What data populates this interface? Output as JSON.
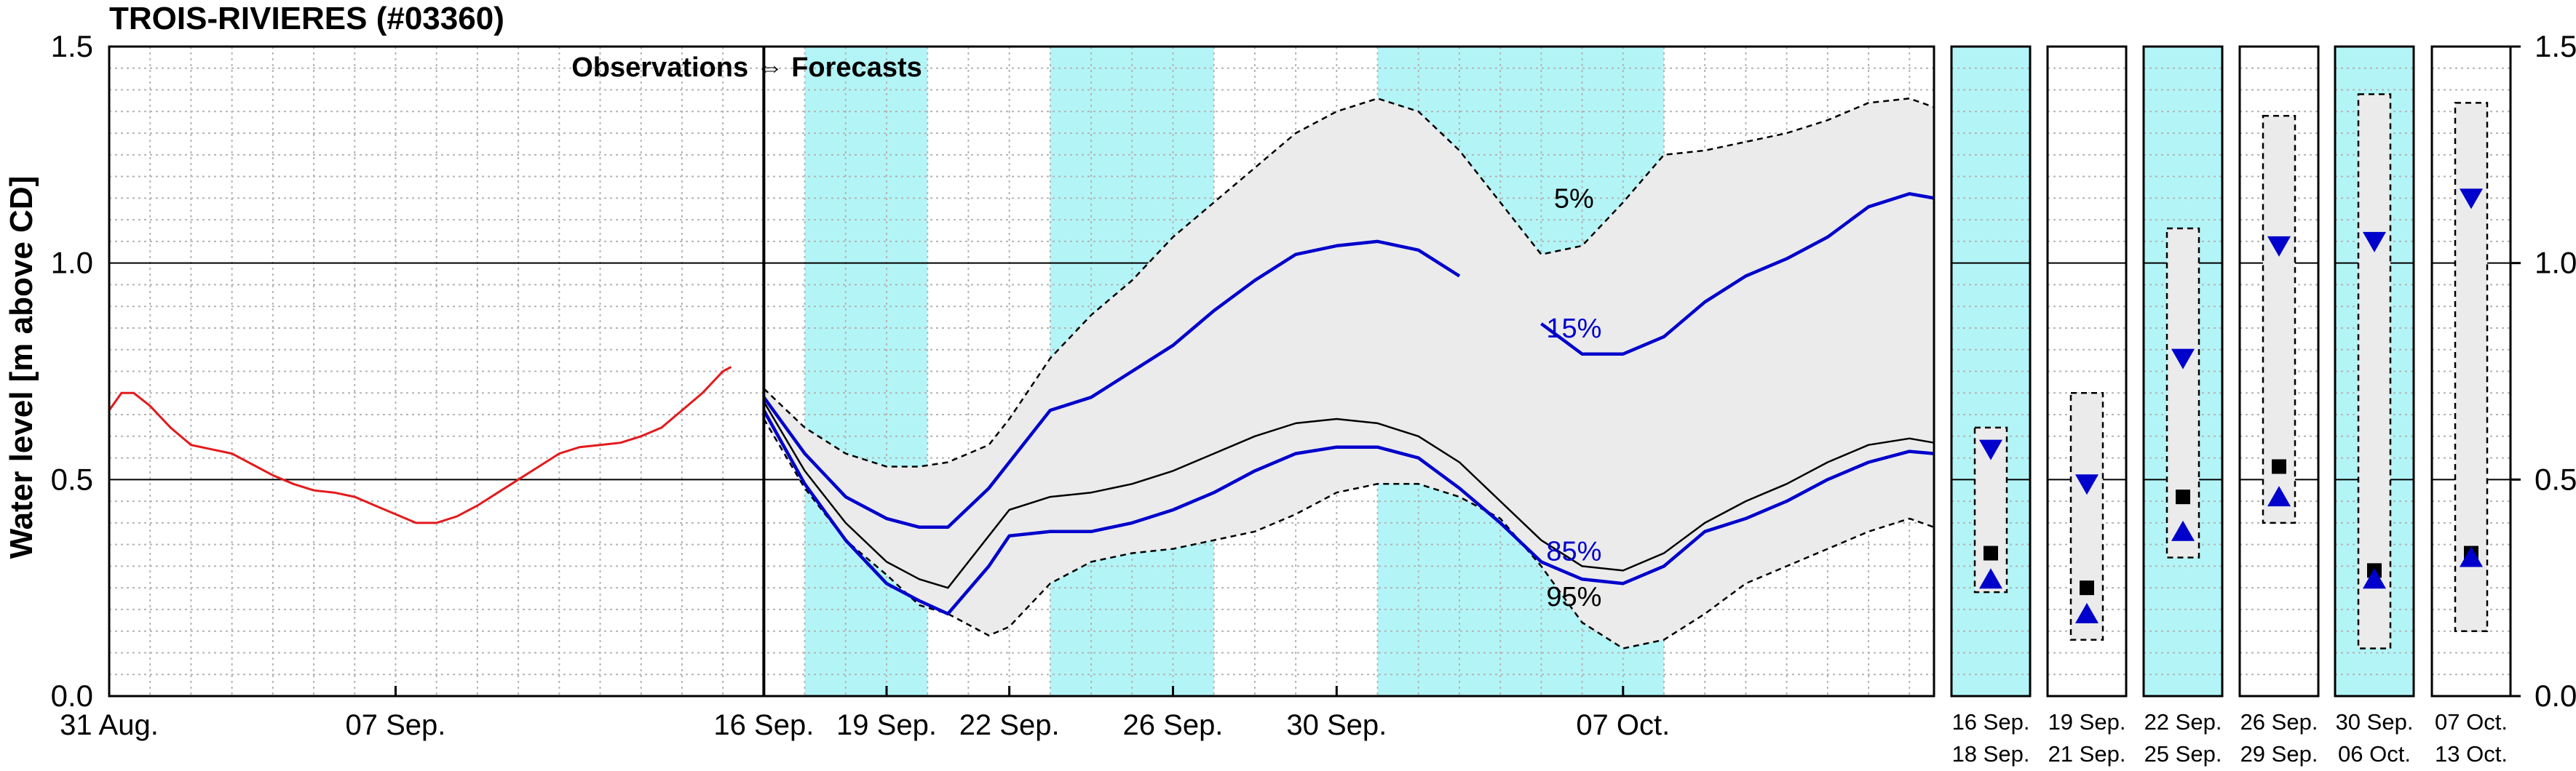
{
  "chart_data": {
    "type": "line",
    "title": "TROIS-RIVIERES (#03360)",
    "ylabel": "Water level [m above CD]",
    "ylim": [
      0,
      1.5
    ],
    "yticks": [
      "0.0",
      "0.5",
      "1.0",
      "1.5"
    ],
    "grid": true,
    "obs_forecast_label": "Observations ⇔ Forecasts",
    "colors": {
      "observed": "#e31a1c",
      "forecast": "#0000cc",
      "median": "#000000",
      "envelope_fill": "#ebebeb",
      "highlight": "#b3f5f7"
    },
    "main_xticks": [
      {
        "day": 0,
        "label": "31 Aug."
      },
      {
        "day": 7,
        "label": "07 Sep."
      },
      {
        "day": 16,
        "label": "16 Sep."
      },
      {
        "day": 19,
        "label": "19 Sep."
      },
      {
        "day": 22,
        "label": "22 Sep."
      },
      {
        "day": 26,
        "label": "26 Sep."
      },
      {
        "day": 30,
        "label": "30 Sep."
      },
      {
        "day": 37,
        "label": "07 Oct."
      }
    ],
    "x_range_days": [
      0,
      44.6
    ],
    "forecast_start_day": 16,
    "highlight_bands_days": [
      [
        17,
        20
      ],
      [
        23,
        27
      ],
      [
        31,
        38
      ]
    ],
    "observed": {
      "x": [
        0,
        0.3,
        0.6,
        1,
        1.5,
        2,
        2.5,
        3,
        3.5,
        4,
        4.5,
        5,
        5.5,
        6,
        6.5,
        7,
        7.5,
        8,
        8.5,
        9,
        9.5,
        10,
        10.5,
        11,
        11.5,
        12,
        12.5,
        13,
        13.5,
        14,
        14.5,
        15,
        15.2
      ],
      "y": [
        0.66,
        0.7,
        0.7,
        0.67,
        0.62,
        0.58,
        0.57,
        0.56,
        0.535,
        0.51,
        0.49,
        0.475,
        0.47,
        0.46,
        0.44,
        0.42,
        0.4,
        0.4,
        0.415,
        0.44,
        0.47,
        0.5,
        0.53,
        0.56,
        0.575,
        0.58,
        0.585,
        0.6,
        0.62,
        0.66,
        0.7,
        0.75,
        0.76
      ]
    },
    "forecast_x": [
      16,
      17,
      18,
      19,
      19.8,
      20.5,
      21.5,
      22,
      23,
      24,
      25,
      26,
      27,
      28,
      29,
      30,
      31,
      32,
      33,
      34,
      35,
      36,
      37,
      38,
      39,
      40,
      41,
      42,
      43,
      44,
      44.6
    ],
    "envelope_upper": [
      0.71,
      0.62,
      0.56,
      0.53,
      0.53,
      0.54,
      0.58,
      0.64,
      0.78,
      0.88,
      0.96,
      1.06,
      1.14,
      1.22,
      1.3,
      1.35,
      1.38,
      1.35,
      1.26,
      1.14,
      1.02,
      1.04,
      1.14,
      1.25,
      1.26,
      1.28,
      1.3,
      1.33,
      1.37,
      1.38,
      1.36
    ],
    "envelope_lower": [
      0.64,
      0.48,
      0.36,
      0.28,
      0.21,
      0.19,
      0.14,
      0.16,
      0.26,
      0.31,
      0.33,
      0.34,
      0.36,
      0.38,
      0.42,
      0.47,
      0.49,
      0.49,
      0.46,
      0.41,
      0.3,
      0.17,
      0.11,
      0.13,
      0.19,
      0.26,
      0.3,
      0.34,
      0.38,
      0.41,
      0.39
    ],
    "annotations": [
      {
        "label": "5%",
        "day": 35.8,
        "y": 1.15,
        "color": "#000000"
      },
      {
        "label": "15%",
        "day": 35.8,
        "y": 0.85,
        "color": "#0000cc"
      },
      {
        "label": "85%",
        "day": 35.8,
        "y": 0.335,
        "color": "#0000cc"
      },
      {
        "label": "95%",
        "day": 35.8,
        "y": 0.23,
        "color": "#000000"
      }
    ],
    "series": [
      {
        "name": "15%",
        "color": "#0000cc",
        "y": [
          0.69,
          0.56,
          0.46,
          0.41,
          0.39,
          0.39,
          0.48,
          0.54,
          0.66,
          0.69,
          0.75,
          0.81,
          0.89,
          0.96,
          1.02,
          1.04,
          1.05,
          1.03,
          0.97,
          null,
          0.86,
          0.79,
          0.79,
          0.83,
          0.91,
          0.97,
          1.01,
          1.06,
          1.13,
          1.16,
          1.15
        ]
      },
      {
        "name": "",
        "color": "#000000",
        "y": [
          0.68,
          0.52,
          0.4,
          0.31,
          0.27,
          0.25,
          0.37,
          0.43,
          0.46,
          0.47,
          0.49,
          0.52,
          0.56,
          0.6,
          0.63,
          0.64,
          0.63,
          0.6,
          0.54,
          0.45,
          0.36,
          0.3,
          0.29,
          0.33,
          0.4,
          0.45,
          0.49,
          0.54,
          0.58,
          0.595,
          0.585
        ]
      },
      {
        "name": "85%",
        "color": "#0000cc",
        "y": [
          0.66,
          0.49,
          0.36,
          0.26,
          0.22,
          0.19,
          0.3,
          0.37,
          0.38,
          0.38,
          0.4,
          0.43,
          0.47,
          0.52,
          0.56,
          0.575,
          0.575,
          0.55,
          0.48,
          0.4,
          0.31,
          0.27,
          0.26,
          0.3,
          0.38,
          0.41,
          0.45,
          0.5,
          0.54,
          0.565,
          0.56
        ]
      }
    ],
    "small_panels": [
      {
        "label_top": "16 Sep.",
        "label_bottom": "18 Sep.",
        "highlight": true,
        "box": [
          0.24,
          0.62
        ],
        "square": 0.33,
        "tri_down": 0.57,
        "tri_up": 0.27
      },
      {
        "label_top": "19 Sep.",
        "label_bottom": "21 Sep.",
        "highlight": false,
        "box": [
          0.13,
          0.7
        ],
        "square": 0.25,
        "tri_down": 0.49,
        "tri_up": 0.19
      },
      {
        "label_top": "22 Sep.",
        "label_bottom": "25 Sep.",
        "highlight": true,
        "box": [
          0.32,
          1.08
        ],
        "square": 0.46,
        "tri_down": 0.78,
        "tri_up": 0.38
      },
      {
        "label_top": "26 Sep.",
        "label_bottom": "29 Sep.",
        "highlight": false,
        "box": [
          0.4,
          1.34
        ],
        "square": 0.53,
        "tri_down": 1.04,
        "tri_up": 0.46
      },
      {
        "label_top": "30 Sep.",
        "label_bottom": "06 Oct.",
        "highlight": true,
        "box": [
          0.11,
          1.39
        ],
        "square": 0.29,
        "tri_down": 1.05,
        "tri_up": 0.27
      },
      {
        "label_top": "07 Oct.",
        "label_bottom": "13 Oct.",
        "highlight": false,
        "box": [
          0.15,
          1.37
        ],
        "square": 0.33,
        "tri_down": 1.15,
        "tri_up": 0.32
      }
    ]
  }
}
